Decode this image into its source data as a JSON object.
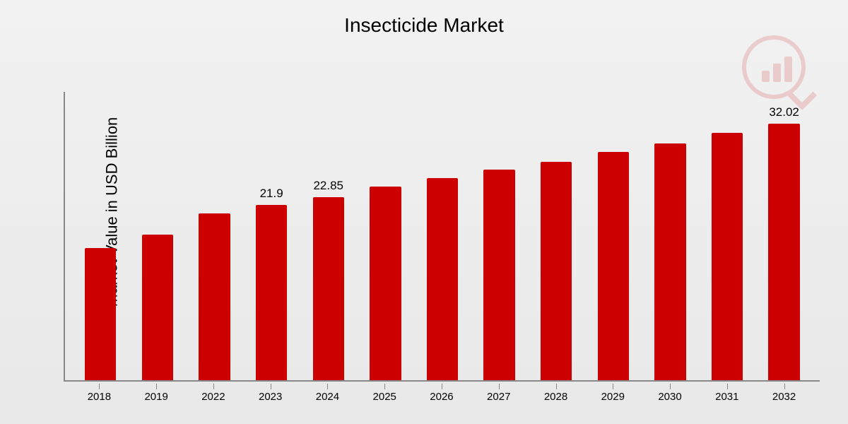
{
  "chart": {
    "type": "bar",
    "title": "Insecticide Market",
    "title_fontsize": 28,
    "ylabel": "Market Value in USD Billion",
    "ylabel_fontsize": 22,
    "background_gradient": [
      "#f2f2f2",
      "#e8e8e8"
    ],
    "axis_color": "#888888",
    "bar_color": "#cc0000",
    "bar_width_ratio": 0.55,
    "ymax": 36,
    "categories": [
      "2018",
      "2019",
      "2022",
      "2023",
      "2024",
      "2025",
      "2026",
      "2027",
      "2028",
      "2029",
      "2030",
      "2031",
      "2032"
    ],
    "values": [
      16.5,
      18.2,
      20.8,
      21.9,
      22.85,
      24.2,
      25.2,
      26.3,
      27.3,
      28.5,
      29.6,
      30.9,
      32.02
    ],
    "data_labels": [
      {
        "index": 3,
        "text": "21.9"
      },
      {
        "index": 4,
        "text": "22.85"
      },
      {
        "index": 12,
        "text": "32.02"
      }
    ],
    "data_label_fontsize": 17,
    "xtick_fontsize": 15,
    "logo": {
      "color": "#cc0000",
      "opacity": 0.15
    }
  }
}
